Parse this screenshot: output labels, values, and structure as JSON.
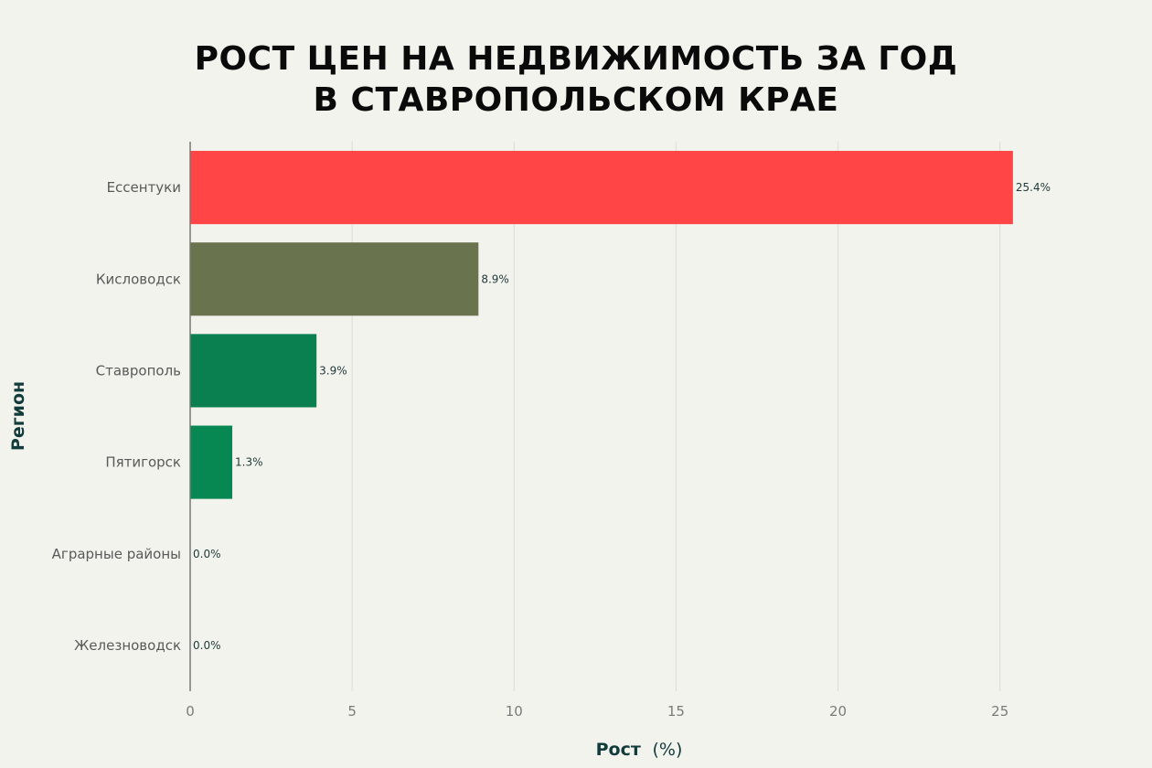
{
  "title_lines": [
    "РОСТ ЦЕН НА НЕДВИЖИМОСТЬ ЗА ГОД",
    "В СТАВРОПОЛЬСКОМ КРАЕ"
  ],
  "chart_data": {
    "type": "bar",
    "orientation": "horizontal",
    "title": "РОСТ ЦЕН НА НЕДВИЖИМОСТЬ ЗА ГОД В СТАВРОПОЛЬСКОМ КРАЕ",
    "categories": [
      "Ессентуки",
      "Кисловодск",
      "Ставрополь",
      "Пятигорск",
      "Аграрные районы",
      "Железноводск"
    ],
    "values": [
      25.4,
      8.9,
      3.9,
      1.3,
      0.0,
      0.0
    ],
    "value_labels": [
      "25.4%",
      "8.9%",
      "3.9%",
      "1.3%",
      "0.0%",
      "0.0%"
    ],
    "colors": [
      "#ff4545",
      "#69734e",
      "#0a7f50",
      "#078852",
      "#078852",
      "#078852"
    ],
    "xlabel_bold": "Рост",
    "xlabel_unit": "(%)",
    "ylabel": "Регион",
    "xlim": [
      0,
      28
    ],
    "xticks": [
      0,
      5,
      10,
      15,
      20,
      25
    ],
    "grid": "vertical"
  }
}
